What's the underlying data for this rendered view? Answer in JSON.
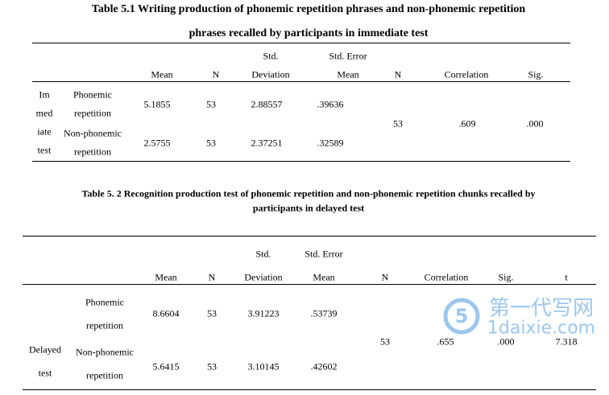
{
  "table1": {
    "title": [
      "Table 5.1 Writing production of phonemic repetition phrases and non-phonemic repetition",
      "phrases recalled by participants in immediate test"
    ],
    "header": [
      [
        "Mean"
      ],
      [
        "N"
      ],
      [
        "Std.",
        "Deviation"
      ],
      [
        "Std. Error",
        "Mean"
      ],
      [
        "N"
      ],
      [
        "Correlation"
      ],
      [
        "Sig."
      ]
    ],
    "group": [
      "Im",
      "med",
      "iate",
      "test"
    ],
    "rows": [
      {
        "label": [
          "Phonemic",
          "repetition"
        ],
        "cells": [
          "5.1855",
          "53",
          "2.88557",
          ".39636"
        ]
      },
      {
        "label": [
          "Non-phonemic",
          "repetition"
        ],
        "cells": [
          "2.5755",
          "53",
          "2.37251",
          ".32589"
        ]
      }
    ],
    "paired": [
      "53",
      ".609",
      ".000"
    ]
  },
  "table2": {
    "title": [
      "Table 5. 2 Recognition production test of phonemic repetition and non-phonemic repetition chunks recalled by",
      "participants in delayed test"
    ],
    "header": [
      [
        "Mean"
      ],
      [
        "N"
      ],
      [
        "Std.",
        "Deviation"
      ],
      [
        "Std. Error",
        "Mean"
      ],
      [
        "N"
      ],
      [
        "Correlation"
      ],
      [
        "Sig."
      ],
      [
        "t"
      ]
    ],
    "group": [
      "Delayed",
      "test"
    ],
    "rows": [
      {
        "label": [
          "Phonemic",
          "repetition"
        ],
        "cells": [
          "8.6604",
          "53",
          "3.91223",
          ".53739"
        ]
      },
      {
        "label": [
          "Non-phonemic",
          "repetition"
        ],
        "cells": [
          "5.6415",
          "53",
          "3.10145",
          ".42602"
        ]
      }
    ],
    "paired": [
      "53",
      ".655",
      ".000",
      "7.318"
    ]
  },
  "watermark": {
    "name": "第一代写网",
    "url": "1daixie.com"
  }
}
